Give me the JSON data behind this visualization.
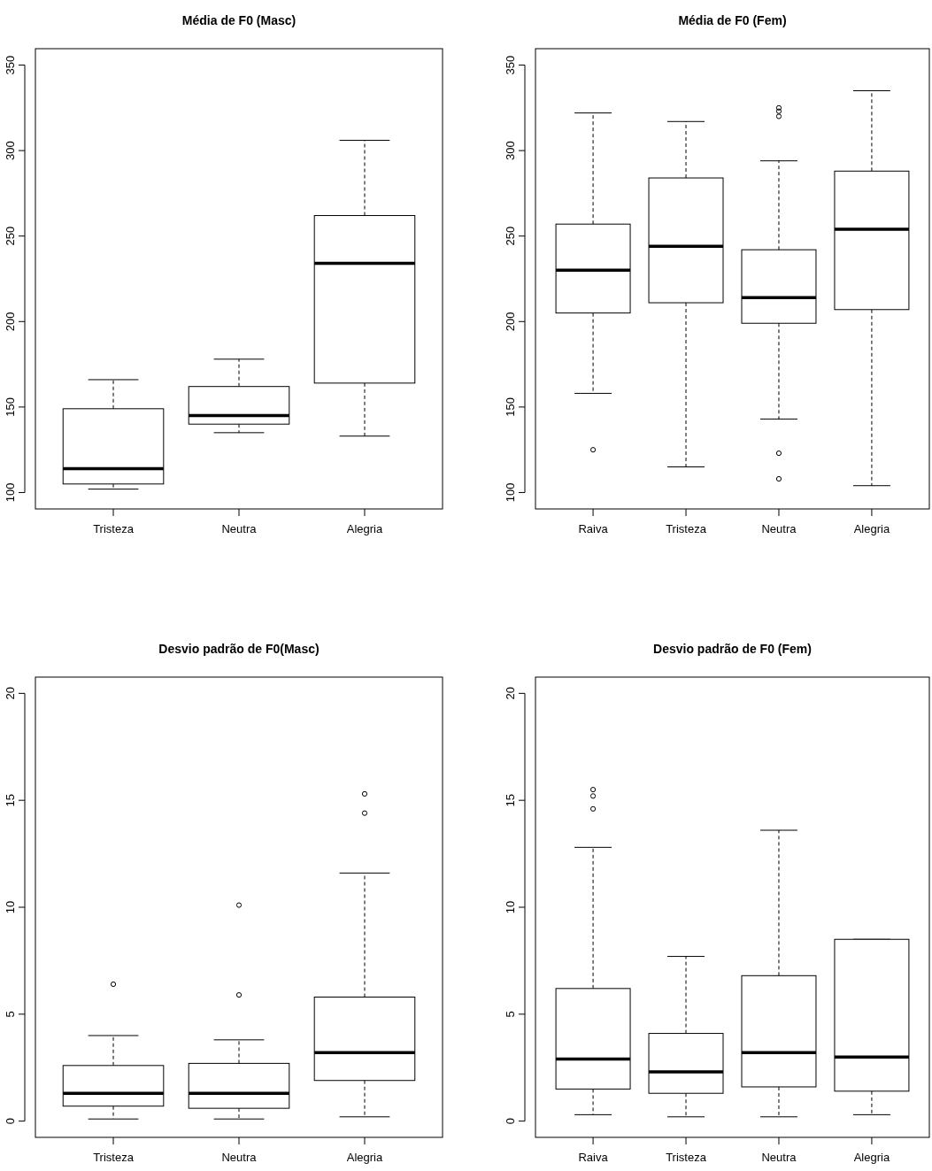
{
  "chart_data": [
    {
      "type": "box",
      "title": "Média de F0 (Masc)",
      "categories": [
        "Tristeza",
        "Neutra",
        "Alegria"
      ],
      "ylim": [
        90.4,
        359.6
      ],
      "yticks": [
        100,
        150,
        200,
        250,
        300,
        350
      ],
      "boxes": [
        {
          "low": 102,
          "q1": 105,
          "median": 114,
          "q3": 149,
          "high": 166
        },
        {
          "low": 135,
          "q1": 140,
          "median": 145,
          "q3": 162,
          "high": 178
        },
        {
          "low": 133,
          "q1": 164,
          "median": 234,
          "q3": 262,
          "high": 306
        }
      ]
    },
    {
      "type": "box",
      "title": "Média de F0 (Fem)",
      "categories": [
        "Raiva",
        "Tristeza",
        "Neutra",
        "Alegria"
      ],
      "ylim": [
        90.4,
        359.6
      ],
      "yticks": [
        100,
        150,
        200,
        250,
        300,
        350
      ],
      "boxes": [
        {
          "low": 158,
          "q1": 205,
          "median": 230,
          "q3": 257,
          "high": 322,
          "outliers": [
            125
          ]
        },
        {
          "low": 115,
          "q1": 211,
          "median": 244,
          "q3": 284,
          "high": 317
        },
        {
          "low": 143,
          "q1": 199,
          "median": 214,
          "q3": 242,
          "high": 294,
          "outliers": [
            325,
            323,
            320,
            123,
            108
          ]
        },
        {
          "low": 104,
          "q1": 207,
          "median": 254,
          "q3": 288,
          "high": 335
        }
      ]
    },
    {
      "type": "box",
      "title": "Desvio padrão de F0(Masc)",
      "categories": [
        "Tristeza",
        "Neutra",
        "Alegria"
      ],
      "ylim": [
        -0.76,
        20.76
      ],
      "yticks": [
        0,
        5,
        10,
        15,
        20
      ],
      "boxes": [
        {
          "low": 0.1,
          "q1": 0.7,
          "median": 1.3,
          "q3": 2.6,
          "high": 4.0,
          "outliers": [
            6.4
          ]
        },
        {
          "low": 0.1,
          "q1": 0.6,
          "median": 1.3,
          "q3": 2.7,
          "high": 3.8,
          "outliers": [
            10.1,
            5.9
          ]
        },
        {
          "low": 0.2,
          "q1": 1.9,
          "median": 3.2,
          "q3": 5.8,
          "high": 11.6,
          "outliers": [
            15.3,
            14.4
          ]
        }
      ]
    },
    {
      "type": "box",
      "title": "Desvio padrão de F0 (Fem)",
      "categories": [
        "Raiva",
        "Tristeza",
        "Neutra",
        "Alegria"
      ],
      "ylim": [
        -0.76,
        20.76
      ],
      "yticks": [
        0,
        5,
        10,
        15,
        20
      ],
      "boxes": [
        {
          "low": 0.3,
          "q1": 1.5,
          "median": 2.9,
          "q3": 6.2,
          "high": 12.8,
          "outliers": [
            15.5,
            15.2,
            14.6
          ]
        },
        {
          "low": 0.2,
          "q1": 1.3,
          "median": 2.3,
          "q3": 4.1,
          "high": 7.7
        },
        {
          "low": 0.2,
          "q1": 1.6,
          "median": 3.2,
          "q3": 6.8,
          "high": 13.6
        },
        {
          "low": 0.3,
          "q1": 1.4,
          "median": 3.0,
          "q3": 8.5,
          "high": 8.5
        }
      ]
    }
  ]
}
